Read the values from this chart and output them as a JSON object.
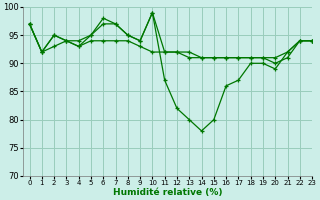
{
  "title": "",
  "xlabel": "Humidité relative (%)",
  "ylabel": "",
  "xlim": [
    -0.5,
    23
  ],
  "ylim": [
    70,
    100
  ],
  "yticks": [
    70,
    75,
    80,
    85,
    90,
    95,
    100
  ],
  "xticks": [
    0,
    1,
    2,
    3,
    4,
    5,
    6,
    7,
    8,
    9,
    10,
    11,
    12,
    13,
    14,
    15,
    16,
    17,
    18,
    19,
    20,
    21,
    22,
    23
  ],
  "background_color": "#cceee8",
  "grid_color": "#99ccbb",
  "line_color": "#007700",
  "series1": [
    97,
    92,
    93,
    94,
    93,
    94,
    94,
    94,
    94,
    93,
    92,
    92,
    92,
    91,
    91,
    91,
    91,
    91,
    91,
    91,
    90,
    91,
    94,
    94
  ],
  "series2": [
    97,
    92,
    95,
    94,
    93,
    95,
    97,
    97,
    95,
    94,
    99,
    87,
    82,
    80,
    78,
    80,
    86,
    87,
    90,
    90,
    89,
    92,
    94,
    94
  ],
  "series3": [
    97,
    92,
    95,
    94,
    94,
    95,
    98,
    97,
    95,
    94,
    99,
    92,
    92,
    92,
    91,
    91,
    91,
    91,
    91,
    91,
    91,
    92,
    94,
    94
  ]
}
